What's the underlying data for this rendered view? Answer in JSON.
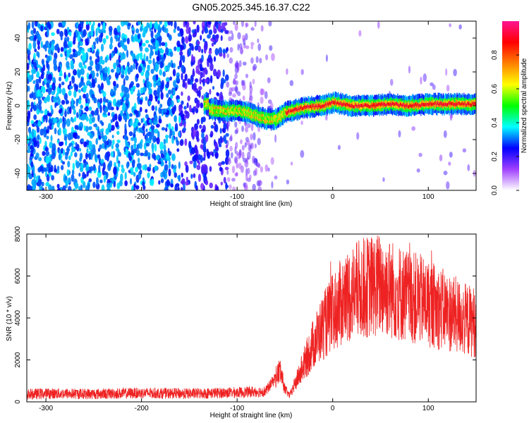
{
  "figure": {
    "title": "GN05.2025.345.16.37.C22"
  },
  "chart_data": [
    {
      "type": "heatmap",
      "xlabel": "Height of straight line (km)",
      "ylabel": "Frequency (Hz)",
      "xlim": [
        -320,
        150
      ],
      "ylim": [
        -50,
        50
      ],
      "xticks": [
        -300,
        -200,
        -100,
        0,
        100
      ],
      "yticks": [
        -40,
        -20,
        0,
        20,
        40
      ],
      "colorbar": {
        "label": "Normalized spectral amplitude",
        "range": [
          0,
          1
        ],
        "ticks": [
          "0.0",
          "0.2",
          "0.4",
          "0.6",
          "0.8"
        ],
        "tick_values": [
          0.0,
          0.2,
          0.4,
          0.6,
          0.8
        ],
        "colormap": [
          "#ffffff",
          "#a040ff",
          "#0000ff",
          "#00ffff",
          "#00ff00",
          "#ffff00",
          "#ff8000",
          "#ff0000",
          "#ff1493"
        ]
      },
      "ridge": {
        "description_x": [
          -130,
          -115,
          -100,
          -90,
          -80,
          -70,
          -60,
          -50,
          -30,
          -10,
          0,
          20,
          40,
          60,
          80,
          100,
          120,
          150
        ],
        "frequency": [
          -2,
          -3,
          -3,
          -4,
          -6,
          -8,
          -8,
          -4,
          -1,
          0,
          2,
          0,
          0,
          1,
          0,
          1,
          1,
          1
        ]
      },
      "grid": false,
      "legend": "right"
    },
    {
      "type": "line",
      "xlabel": "Height of straight line (km)",
      "ylabel": "SNR (10 * v/v)",
      "xlim": [
        -320,
        150
      ],
      "ylim": [
        0,
        8000
      ],
      "xticks": [
        -300,
        -200,
        -100,
        0,
        100
      ],
      "yticks": [
        0,
        2000,
        4000,
        6000,
        8000
      ],
      "series": [
        {
          "color": "#ee2222",
          "x": [
            -320,
            -300,
            -250,
            -200,
            -150,
            -100,
            -70,
            -55,
            -50,
            -45,
            -40,
            -30,
            -20,
            -10,
            0,
            10,
            20,
            30,
            40,
            50,
            60,
            70,
            80,
            90,
            100,
            110,
            120,
            130,
            140,
            150
          ],
          "y": [
            350,
            400,
            380,
            420,
            390,
            450,
            500,
            1500,
            600,
            300,
            800,
            1800,
            2800,
            3600,
            4200,
            4800,
            5200,
            5400,
            5500,
            5600,
            5400,
            5200,
            5000,
            4900,
            4700,
            4500,
            4300,
            4100,
            3900,
            3800
          ]
        }
      ],
      "grid": false
    }
  ]
}
